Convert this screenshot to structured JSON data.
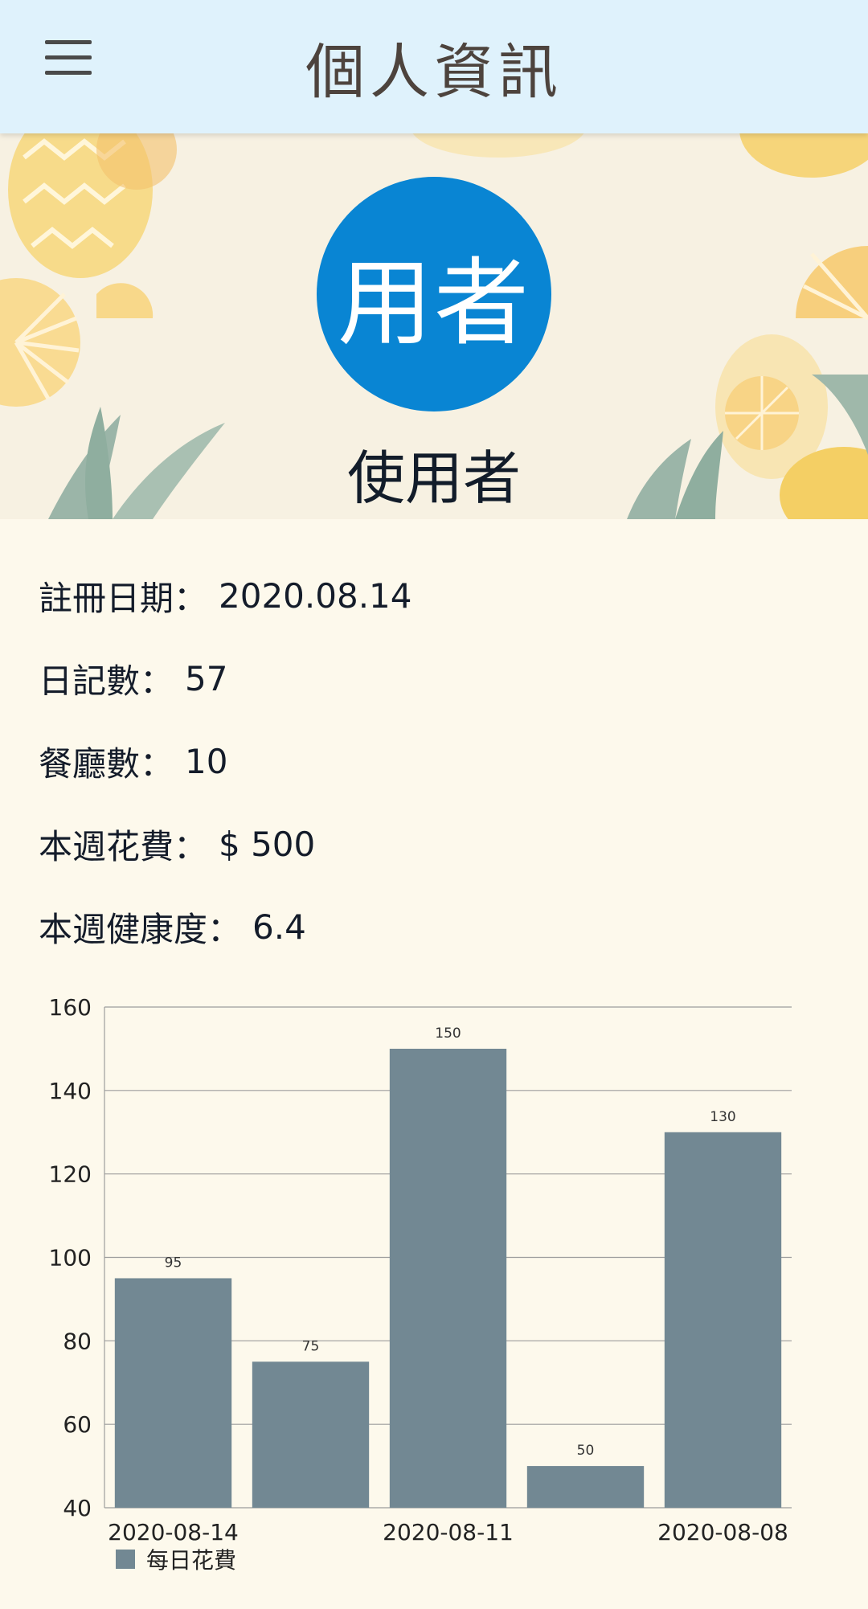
{
  "appbar": {
    "title": "個人資訊"
  },
  "profile": {
    "avatar_text": "用者",
    "name": "使用者"
  },
  "info": [
    {
      "label": "註冊日期：",
      "value": "2020.08.14"
    },
    {
      "label": "日記數：",
      "value": "57"
    },
    {
      "label": "餐廳數：",
      "value": "10"
    },
    {
      "label": "本週花費：",
      "value": "$ 500"
    },
    {
      "label": "本週健康度：",
      "value": "6.4"
    }
  ],
  "colors": {
    "appbar": "#dff2fc",
    "avatar": "#0985d3",
    "bar": "#728893",
    "background": "#fdf9ec"
  },
  "chart_data": {
    "type": "bar",
    "categories": [
      "2020-08-14",
      "",
      "2020-08-11",
      "",
      "2020-08-08"
    ],
    "series": [
      {
        "name": "每日花費",
        "values": [
          95,
          75,
          150,
          50,
          130
        ]
      }
    ],
    "ylim": [
      40,
      160
    ],
    "yticks": [
      40,
      60,
      80,
      100,
      120,
      140,
      160
    ],
    "grid": true,
    "legend": "bottom-left"
  }
}
